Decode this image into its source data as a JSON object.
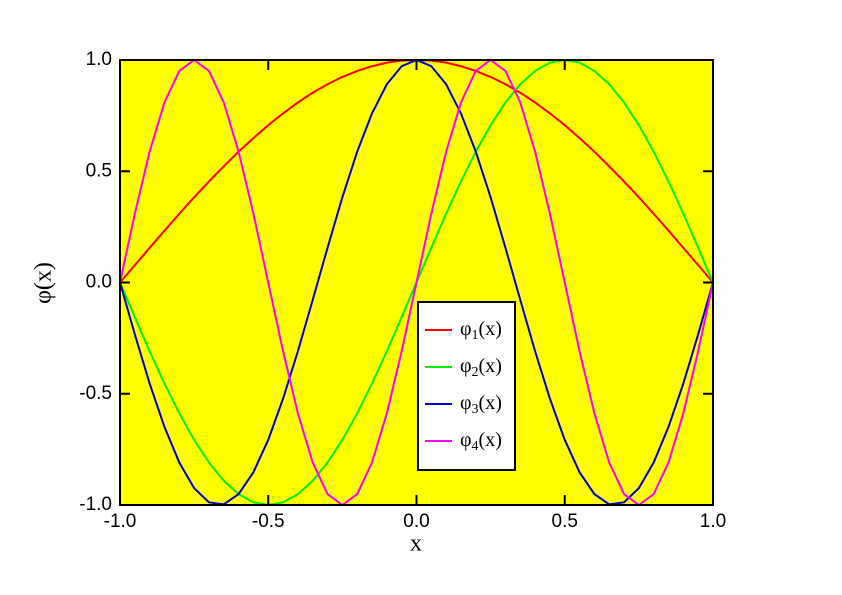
{
  "chart_data": {
    "type": "line",
    "x_label": "x",
    "y_label": "φ(x)",
    "background": "#ffff00",
    "grid": false,
    "x": [
      -1,
      -0.95,
      -0.9,
      -0.85,
      -0.8,
      -0.75,
      -0.7,
      -0.65,
      -0.6,
      -0.55,
      -0.5,
      -0.45,
      -0.4,
      -0.35,
      -0.3,
      -0.25,
      -0.2,
      -0.15,
      -0.1,
      -0.05,
      0,
      0.05,
      0.1,
      0.15,
      0.2,
      0.25,
      0.3,
      0.35,
      0.4,
      0.45,
      0.5,
      0.55,
      0.6,
      0.65,
      0.7,
      0.75,
      0.8,
      0.85,
      0.9,
      0.95,
      1
    ],
    "series": [
      {
        "name": "φ1(x)",
        "color": "#ff0000",
        "values": [
          0,
          0.078,
          0.156,
          0.233,
          0.309,
          0.383,
          0.454,
          0.522,
          0.588,
          0.649,
          0.707,
          0.76,
          0.809,
          0.853,
          0.891,
          0.924,
          0.951,
          0.972,
          0.988,
          0.997,
          1,
          0.997,
          0.988,
          0.972,
          0.951,
          0.924,
          0.891,
          0.853,
          0.809,
          0.76,
          0.707,
          0.649,
          0.588,
          0.522,
          0.454,
          0.383,
          0.309,
          0.233,
          0.156,
          0.078,
          0
        ]
      },
      {
        "name": "φ2(x)",
        "color": "#00ee00",
        "values": [
          0,
          -0.156,
          -0.309,
          -0.454,
          -0.588,
          -0.707,
          -0.809,
          -0.891,
          -0.951,
          -0.988,
          -1,
          -0.988,
          -0.951,
          -0.891,
          -0.809,
          -0.707,
          -0.588,
          -0.454,
          -0.309,
          -0.156,
          0,
          0.156,
          0.309,
          0.454,
          0.588,
          0.707,
          0.809,
          0.891,
          0.951,
          0.988,
          1,
          0.988,
          0.951,
          0.891,
          0.809,
          0.707,
          0.588,
          0.454,
          0.309,
          0.156,
          0
        ]
      },
      {
        "name": "φ3(x)",
        "color": "#0000cc",
        "values": [
          0,
          -0.233,
          -0.454,
          -0.649,
          -0.809,
          -0.924,
          -0.988,
          -0.997,
          -0.951,
          -0.853,
          -0.707,
          -0.522,
          -0.309,
          -0.078,
          0.156,
          0.383,
          0.588,
          0.76,
          0.891,
          0.972,
          1,
          0.972,
          0.891,
          0.76,
          0.588,
          0.383,
          0.156,
          -0.078,
          -0.309,
          -0.522,
          -0.707,
          -0.853,
          -0.951,
          -0.997,
          -0.988,
          -0.924,
          -0.809,
          -0.649,
          -0.454,
          -0.233,
          0
        ]
      },
      {
        "name": "φ4(x)",
        "color": "#ff00ff",
        "values": [
          0,
          0.309,
          0.588,
          0.809,
          0.951,
          1,
          0.951,
          0.809,
          0.588,
          0.309,
          0,
          -0.309,
          -0.588,
          -0.809,
          -0.951,
          -1,
          -0.951,
          -0.809,
          -0.588,
          -0.309,
          0,
          0.309,
          0.588,
          0.809,
          0.951,
          1,
          0.951,
          0.809,
          0.588,
          0.309,
          0,
          -0.309,
          -0.588,
          -0.809,
          -0.951,
          -1,
          -0.951,
          -0.809,
          -0.588,
          -0.309,
          0
        ]
      }
    ],
    "xlim": [
      -1,
      1
    ],
    "ylim": [
      -1,
      1
    ],
    "xticks": [
      {
        "value": -1,
        "label": "-1.0"
      },
      -0.5,
      {
        "value": 0,
        "label": "0.0"
      },
      0.5,
      {
        "value": 1,
        "label": "1.0"
      }
    ],
    "yticks": [
      {
        "value": -1,
        "label": "-1.0"
      },
      -0.5,
      {
        "value": 0,
        "label": "0.0"
      },
      0.5,
      {
        "value": 1,
        "label": "1.0"
      }
    ]
  }
}
